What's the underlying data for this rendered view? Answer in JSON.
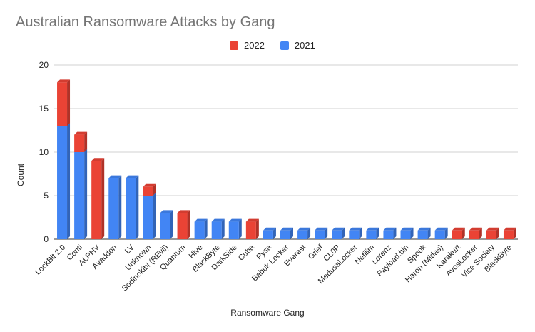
{
  "chart_data": {
    "type": "bar",
    "stacked": true,
    "three_d": true,
    "title": "Australian Ransomware Attacks by Gang",
    "xlabel": "Ransomware Gang",
    "ylabel": "Count",
    "ylim": [
      0,
      20
    ],
    "yticks": [
      0,
      5,
      10,
      15,
      20
    ],
    "grid": true,
    "legend_position": "top",
    "categories": [
      "LockBit 2.0",
      "Conti",
      "ALPHV",
      "Avaddon",
      "LV",
      "Unknown",
      "Sodinokibi (REvil)",
      "Quantum",
      "Hive",
      "BlackByte",
      "DarkSide",
      "Cuba",
      "Pysa",
      "Babuk Locker",
      "Everest",
      "Grief",
      "CL0P",
      "MedusaLocker",
      "Nefilim",
      "Lorenz",
      "Payload.bin",
      "Spook",
      "Haron (Midas)",
      "Karakurt",
      "AvosLocker",
      "Vice Society",
      "BlackByte"
    ],
    "series": [
      {
        "name": "2021",
        "color": "#4285f4",
        "values": [
          13,
          10,
          0,
          7,
          7,
          5,
          3,
          0,
          2,
          2,
          2,
          0,
          1,
          1,
          1,
          1,
          1,
          1,
          1,
          1,
          1,
          1,
          1,
          0,
          0,
          0,
          0
        ]
      },
      {
        "name": "2022",
        "color": "#ea4335",
        "values": [
          5,
          2,
          9,
          0,
          0,
          1,
          0,
          3,
          0,
          0,
          0,
          2,
          0,
          0,
          0,
          0,
          0,
          0,
          0,
          0,
          0,
          0,
          0,
          1,
          1,
          1,
          1
        ]
      }
    ],
    "legend_order": [
      "2022",
      "2021"
    ]
  }
}
